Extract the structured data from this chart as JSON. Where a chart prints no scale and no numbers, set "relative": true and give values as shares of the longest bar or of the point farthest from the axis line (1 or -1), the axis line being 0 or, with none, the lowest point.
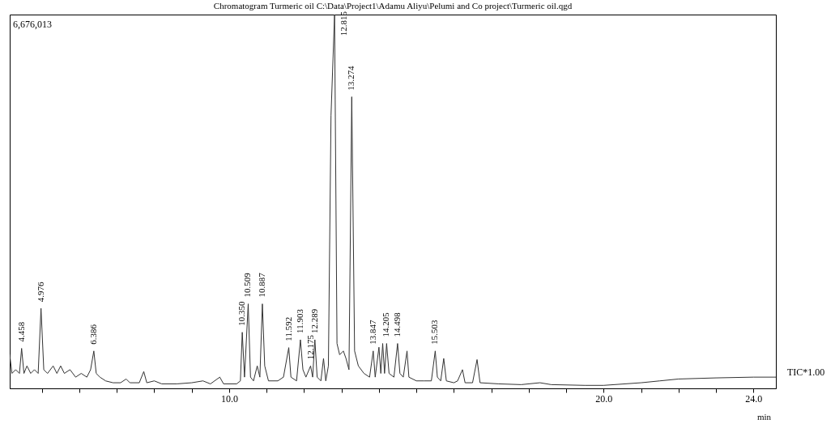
{
  "chart_data": {
    "type": "line",
    "title": "Chromatogram Turmeric oil C:\\Data\\Project1\\Adamu Aliyu\\Pelumi and Co project\\Turmeric oil.qgd",
    "xlabel": "min",
    "relative": true,
    "grid": false,
    "xlim": [
      4.14,
      24.6
    ],
    "xticks": [
      {
        "value": 5,
        "label": null
      },
      {
        "value": 6,
        "label": null
      },
      {
        "value": 7,
        "label": null
      },
      {
        "value": 8,
        "label": null
      },
      {
        "value": 9,
        "label": null
      },
      {
        "value": 10,
        "label": "10.0"
      },
      {
        "value": 11,
        "label": null
      },
      {
        "value": 12,
        "label": null
      },
      {
        "value": 13,
        "label": null
      },
      {
        "value": 14,
        "label": null
      },
      {
        "value": 15,
        "label": null
      },
      {
        "value": 16,
        "label": null
      },
      {
        "value": 17,
        "label": null
      },
      {
        "value": 18,
        "label": null
      },
      {
        "value": 19,
        "label": null
      },
      {
        "value": 20,
        "label": "20.0"
      },
      {
        "value": 21,
        "label": null
      },
      {
        "value": 22,
        "label": null
      },
      {
        "value": 23,
        "label": null
      },
      {
        "value": 24,
        "label": "24.0"
      }
    ],
    "series": [
      {
        "color": "#333333",
        "x": [
          4.14,
          4.2,
          4.3,
          4.4,
          4.458,
          4.52,
          4.6,
          4.7,
          4.8,
          4.9,
          4.976,
          5.05,
          5.15,
          5.3,
          5.4,
          5.5,
          5.6,
          5.75,
          5.9,
          6.05,
          6.2,
          6.3,
          6.386,
          6.45,
          6.55,
          6.7,
          6.9,
          7.1,
          7.25,
          7.35,
          7.6,
          7.72,
          7.8,
          8.0,
          8.2,
          8.6,
          9.0,
          9.3,
          9.5,
          9.75,
          9.85,
          10.2,
          10.3,
          10.35,
          10.41,
          10.509,
          10.57,
          10.65,
          10.75,
          10.82,
          10.887,
          10.95,
          11.05,
          11.3,
          11.45,
          11.592,
          11.65,
          11.8,
          11.903,
          11.97,
          12.05,
          12.175,
          12.23,
          12.289,
          12.35,
          12.45,
          12.52,
          12.58,
          12.65,
          12.72,
          12.815,
          12.88,
          12.95,
          13.05,
          13.12,
          13.2,
          13.274,
          13.35,
          13.45,
          13.6,
          13.75,
          13.847,
          13.9,
          14.0,
          14.05,
          14.1,
          14.15,
          14.205,
          14.27,
          14.4,
          14.498,
          14.56,
          14.65,
          14.75,
          14.8,
          15.0,
          15.2,
          15.4,
          15.503,
          15.56,
          15.65,
          15.73,
          15.8,
          16.0,
          16.1,
          16.23,
          16.3,
          16.5,
          16.62,
          16.7,
          17.2,
          17.8,
          18.3,
          18.6,
          19.5,
          20.0,
          21.0,
          21.5,
          22.0,
          23.0,
          24.0,
          24.6
        ],
        "values": [
          0.09,
          0.04,
          0.05,
          0.04,
          0.107,
          0.04,
          0.06,
          0.04,
          0.05,
          0.04,
          0.214,
          0.05,
          0.04,
          0.06,
          0.04,
          0.06,
          0.04,
          0.05,
          0.03,
          0.04,
          0.03,
          0.05,
          0.1,
          0.04,
          0.03,
          0.02,
          0.015,
          0.015,
          0.025,
          0.015,
          0.015,
          0.045,
          0.015,
          0.02,
          0.012,
          0.012,
          0.015,
          0.02,
          0.012,
          0.03,
          0.012,
          0.012,
          0.02,
          0.15,
          0.03,
          0.226,
          0.03,
          0.02,
          0.06,
          0.03,
          0.226,
          0.06,
          0.02,
          0.02,
          0.03,
          0.109,
          0.03,
          0.02,
          0.13,
          0.05,
          0.03,
          0.06,
          0.03,
          0.13,
          0.03,
          0.02,
          0.08,
          0.02,
          0.06,
          0.73,
          1.0,
          0.12,
          0.09,
          0.1,
          0.08,
          0.05,
          0.78,
          0.1,
          0.06,
          0.04,
          0.03,
          0.1,
          0.03,
          0.11,
          0.04,
          0.12,
          0.04,
          0.12,
          0.04,
          0.03,
          0.12,
          0.04,
          0.03,
          0.1,
          0.03,
          0.02,
          0.02,
          0.02,
          0.1,
          0.03,
          0.02,
          0.08,
          0.02,
          0.015,
          0.02,
          0.05,
          0.015,
          0.015,
          0.077,
          0.015,
          0.012,
          0.01,
          0.015,
          0.01,
          0.008,
          0.008,
          0.015,
          0.02,
          0.025,
          0.028,
          0.03,
          0.03
        ]
      }
    ],
    "annotations": [
      "6,676,013",
      "TIC*1.00",
      {
        "text": "4.458",
        "x": 4.458,
        "y": 0.107
      },
      {
        "text": "4.976",
        "x": 4.976,
        "y": 0.214
      },
      {
        "text": "6.386",
        "x": 6.386,
        "y": 0.1
      },
      {
        "text": "10.350",
        "x": 10.35,
        "y": 0.15
      },
      {
        "text": "10.509",
        "x": 10.509,
        "y": 0.226
      },
      {
        "text": "10.887",
        "x": 10.887,
        "y": 0.226
      },
      {
        "text": "11.592",
        "x": 11.592,
        "y": 0.109
      },
      {
        "text": "11.903",
        "x": 11.903,
        "y": 0.13
      },
      {
        "text": "12.175",
        "x": 12.175,
        "y": 0.06
      },
      {
        "text": "12.289",
        "x": 12.289,
        "y": 0.13
      },
      {
        "text": "12.815",
        "x": 12.815,
        "y": 1.0
      },
      {
        "text": "13.274",
        "x": 13.274,
        "y": 0.78
      },
      {
        "text": "13.847",
        "x": 13.847,
        "y": 0.1
      },
      {
        "text": "14.205",
        "x": 14.205,
        "y": 0.12
      },
      {
        "text": "14.498",
        "x": 14.498,
        "y": 0.12
      },
      {
        "text": "15.503",
        "x": 15.503,
        "y": 0.1
      }
    ]
  }
}
